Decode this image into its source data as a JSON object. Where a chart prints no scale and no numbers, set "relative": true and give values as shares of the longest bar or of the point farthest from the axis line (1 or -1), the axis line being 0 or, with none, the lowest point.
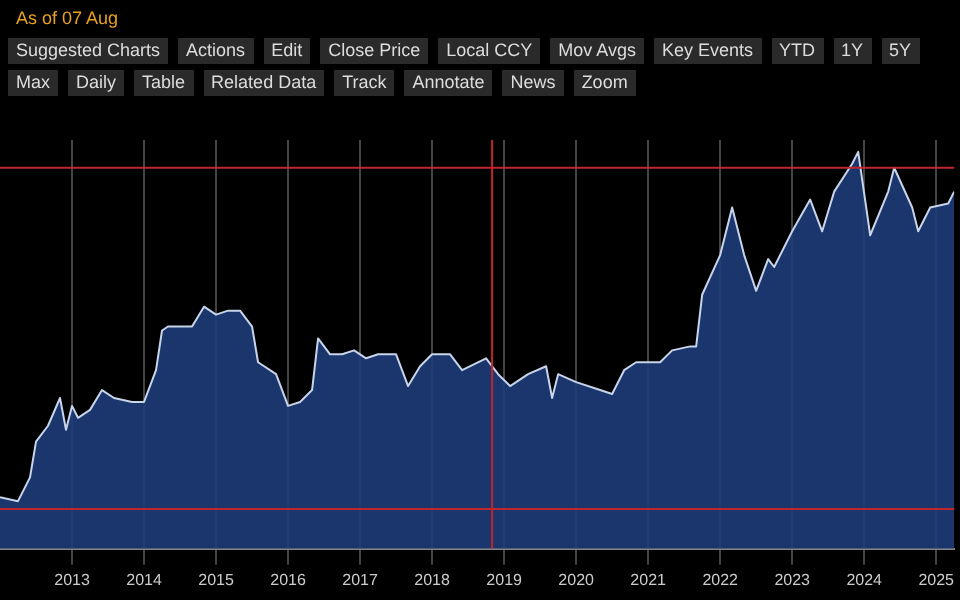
{
  "chart_data": {
    "type": "area",
    "relative": true,
    "x": [
      "2012-07",
      "2012-10",
      "2012-12",
      "2013-01",
      "2013-03",
      "2013-05",
      "2013-06",
      "2013-07",
      "2013-08",
      "2013-10",
      "2013-12",
      "2014-02",
      "2014-05",
      "2014-07",
      "2014-09",
      "2014-10",
      "2014-11",
      "2015-01",
      "2015-03",
      "2015-05",
      "2015-07",
      "2015-09",
      "2015-11",
      "2016-01",
      "2016-02",
      "2016-05",
      "2016-07",
      "2016-09",
      "2016-11",
      "2016-12",
      "2017-02",
      "2017-04",
      "2017-06",
      "2017-08",
      "2017-10",
      "2018-01",
      "2018-03",
      "2018-05",
      "2018-07",
      "2018-10",
      "2018-12",
      "2019-04",
      "2019-06",
      "2019-08",
      "2019-11",
      "2020-02",
      "2020-03",
      "2020-04",
      "2020-07",
      "2020-11",
      "2021-01",
      "2021-03",
      "2021-05",
      "2021-09",
      "2021-11",
      "2022-02",
      "2022-03",
      "2022-04",
      "2022-07",
      "2022-09",
      "2022-11",
      "2023-01",
      "2023-03",
      "2023-04",
      "2023-07",
      "2023-10",
      "2023-12",
      "2024-02",
      "2024-05",
      "2024-06",
      "2024-08",
      "2024-11",
      "2024-12",
      "2025-03",
      "2025-04",
      "2025-06",
      "2025-09",
      "2025-10"
    ],
    "series": [
      {
        "color": "#c8d4ea",
        "values": [
          0.13,
          0.12,
          0.18,
          0.27,
          0.31,
          0.38,
          0.3,
          0.36,
          0.33,
          0.35,
          0.4,
          0.38,
          0.37,
          0.37,
          0.45,
          0.55,
          0.56,
          0.56,
          0.56,
          0.61,
          0.59,
          0.6,
          0.6,
          0.56,
          0.47,
          0.44,
          0.36,
          0.37,
          0.4,
          0.53,
          0.49,
          0.49,
          0.5,
          0.48,
          0.49,
          0.49,
          0.41,
          0.46,
          0.49,
          0.49,
          0.45,
          0.48,
          0.44,
          0.41,
          0.44,
          0.46,
          0.38,
          0.44,
          0.42,
          0.4,
          0.39,
          0.45,
          0.47,
          0.47,
          0.5,
          0.51,
          0.51,
          0.64,
          0.74,
          0.86,
          0.74,
          0.65,
          0.73,
          0.71,
          0.8,
          0.88,
          0.8,
          0.9,
          0.97,
          1,
          0.79,
          0.9,
          0.96,
          0.86,
          0.8,
          0.86,
          0.87,
          0.9
        ]
      }
    ],
    "xlim": [
      "2012-07",
      "2025-10"
    ],
    "xticks": [
      {
        "value": "2013-07",
        "label": "2013"
      },
      {
        "value": "2014-07",
        "label": "2014"
      },
      {
        "value": "2015-07",
        "label": "2015"
      },
      {
        "value": "2016-07",
        "label": "2016"
      },
      {
        "value": "2017-07",
        "label": "2017"
      },
      {
        "value": "2018-07",
        "label": "2018"
      },
      {
        "value": "2019-07",
        "label": "2019"
      },
      {
        "value": "2020-07",
        "label": "2020"
      },
      {
        "value": "2021-07",
        "label": "2021"
      },
      {
        "value": "2022-07",
        "label": "2022"
      },
      {
        "value": "2023-07",
        "label": "2023"
      },
      {
        "value": "2024-07",
        "label": "2024"
      },
      {
        "value": "2025-07",
        "label": "2025"
      }
    ],
    "grid": "x",
    "ref_lines": [
      {
        "axis": "y",
        "value": 0.96,
        "color": "#c0272d"
      },
      {
        "axis": "y",
        "value": 0.1,
        "color": "#c0272d"
      },
      {
        "axis": "x",
        "value": "2019-05",
        "color": "#c0272d"
      }
    ],
    "annotations": [
      "As of 07 Aug",
      "Suggested Charts",
      "Actions",
      "Edit",
      "Close Price",
      "Local CCY",
      "Mov Avgs",
      "Key Events",
      "YTD",
      "1Y",
      "5Y",
      "Max",
      "Daily",
      "Table",
      "Related Data",
      "Track",
      "Annotate",
      "News",
      "Zoom"
    ]
  }
}
